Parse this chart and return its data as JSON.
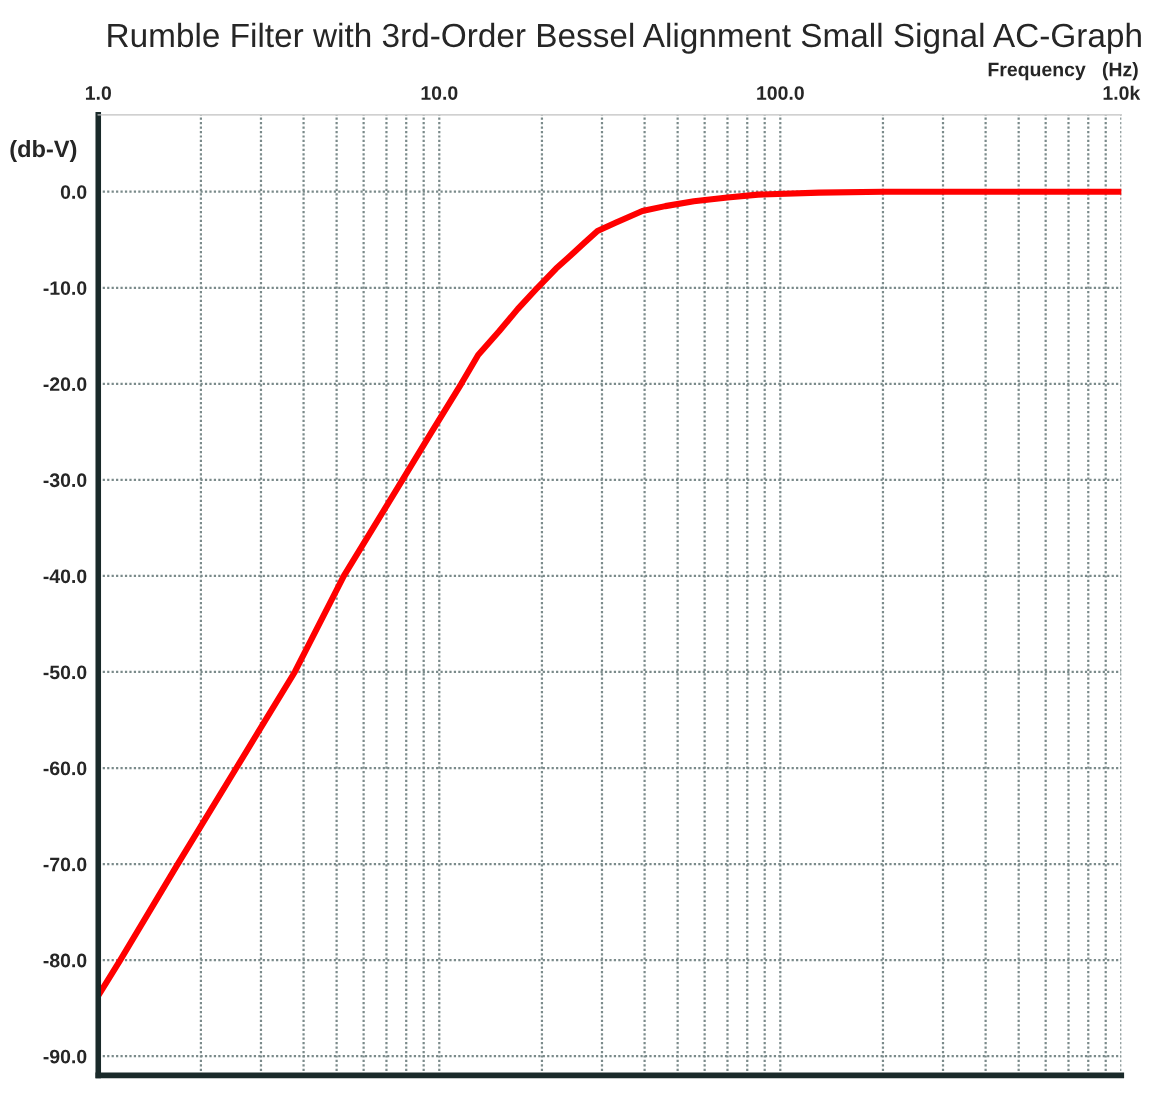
{
  "chart_data": {
    "type": "line",
    "title": "Rumble Filter with 3rd-Order Bessel Alignment Small Signal AC-Graph",
    "xlabel": "Frequency   (Hz)",
    "ylabel": "(db-V)",
    "log": "x",
    "grid": true,
    "marker": "none",
    "line_style": "solid",
    "xlim": [
      1,
      1000
    ],
    "ylim": [
      -92,
      8
    ],
    "xticks": [
      {
        "value": 1,
        "label": "1.0"
      },
      {
        "value": 2,
        "label": null
      },
      {
        "value": 3,
        "label": null
      },
      {
        "value": 4,
        "label": null
      },
      {
        "value": 5,
        "label": null
      },
      {
        "value": 6,
        "label": null
      },
      {
        "value": 7,
        "label": null
      },
      {
        "value": 8,
        "label": null
      },
      {
        "value": 9,
        "label": null
      },
      {
        "value": 10,
        "label": "10.0"
      },
      {
        "value": 20,
        "label": null
      },
      {
        "value": 30,
        "label": null
      },
      {
        "value": 40,
        "label": null
      },
      {
        "value": 50,
        "label": null
      },
      {
        "value": 60,
        "label": null
      },
      {
        "value": 70,
        "label": null
      },
      {
        "value": 80,
        "label": null
      },
      {
        "value": 90,
        "label": null
      },
      {
        "value": 100,
        "label": "100.0"
      },
      {
        "value": 200,
        "label": null
      },
      {
        "value": 300,
        "label": null
      },
      {
        "value": 400,
        "label": null
      },
      {
        "value": 500,
        "label": null
      },
      {
        "value": 600,
        "label": null
      },
      {
        "value": 700,
        "label": null
      },
      {
        "value": 800,
        "label": null
      },
      {
        "value": 900,
        "label": null
      },
      {
        "value": 1000,
        "label": "1.0k"
      }
    ],
    "yticks": [
      {
        "value": 0,
        "label": "0.0"
      },
      {
        "value": -10,
        "label": "-10.0"
      },
      {
        "value": -20,
        "label": "-20.0"
      },
      {
        "value": -30,
        "label": "-30.0"
      },
      {
        "value": -40,
        "label": "-40.0"
      },
      {
        "value": -50,
        "label": "-50.0"
      },
      {
        "value": -60,
        "label": "-60.0"
      },
      {
        "value": -70,
        "label": "-70.0"
      },
      {
        "value": -80,
        "label": "-80.0"
      },
      {
        "value": -90,
        "label": "-90.0"
      }
    ],
    "series": [
      {
        "color": "#ff0000",
        "x": [
          1,
          1.16,
          1.71,
          2.54,
          3.77,
          5.25,
          7.8,
          9.5,
          11.6,
          13,
          15,
          17,
          19.4,
          22,
          24,
          26.5,
          29.1,
          33,
          39.4,
          46,
          55.8,
          70,
          86,
          130,
          200,
          400,
          1000
        ],
        "values": [
          -83.7,
          -80,
          -70,
          -60,
          -50,
          -40,
          -30,
          -25,
          -20,
          -17,
          -14.5,
          -12.2,
          -10,
          -8,
          -6.8,
          -5.4,
          -4.1,
          -3.2,
          -2,
          -1.5,
          -1,
          -0.6,
          -0.3,
          -0.1,
          0,
          0,
          0
        ]
      }
    ]
  }
}
